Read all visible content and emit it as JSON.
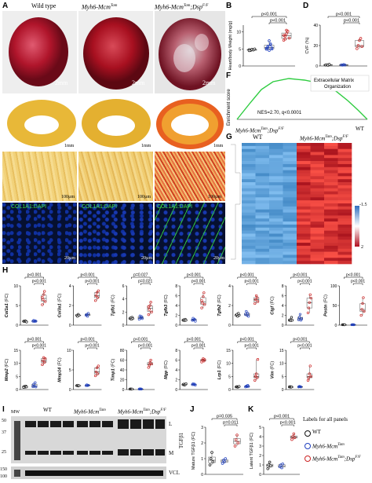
{
  "panels": {
    "A": {
      "label": "A",
      "headers": [
        "Wild type",
        "Myh6-Mcm",
        "Myh6-Mcm"
      ],
      "header_sup": [
        "",
        "Tam",
        "Tam"
      ],
      "header_tail": [
        "",
        "",
        ";Dsp"
      ],
      "header_tail_sup": [
        "",
        "",
        "F/F"
      ],
      "scalebars": [
        "2mm",
        "2mm",
        "2mm"
      ]
    },
    "B": {
      "label": "B"
    },
    "C": {
      "label": "C",
      "scalebars": [
        "1mm",
        "1mm",
        "1mm",
        "100µm",
        "100µm",
        "100µm"
      ]
    },
    "D": {
      "label": "D"
    },
    "E": {
      "label": "E",
      "stains": [
        "COL1A1:DAPI",
        "COL1A1:DAPI",
        "COL1A1:DAPI"
      ],
      "scalebars": [
        "20µm",
        "20µm",
        "20µm"
      ]
    },
    "F": {
      "label": "F",
      "ylabel": "Enrichment score",
      "box_text": "Extracellular Matrix Organization",
      "nes": "NES=2.70, q<0.0001",
      "xleft": "Myh6-Mcm",
      "xleft_sup": "Tam",
      "xleft_tail": ";Dsp",
      "xleft_tail_sup": "F/F",
      "xright": "WT"
    },
    "G": {
      "label": "G",
      "col_left": "WT",
      "col_right": "Myh6-Mcm",
      "col_right_sup": "Tam",
      "col_right_tail": ";Dsp",
      "col_right_tail_sup": "F/F",
      "scale_top": "-1.5",
      "scale_bottom": "2"
    },
    "H": {
      "label": "H"
    },
    "I": {
      "label": "I",
      "mw": "MW",
      "lanes": [
        "WT",
        "Myh6-Mcm",
        "Myh6-Mcm"
      ],
      "lane_sup": [
        "",
        "Tam",
        "Tam"
      ],
      "lane_tail": [
        "",
        "",
        ";Dsp"
      ],
      "lane_tail_sup": [
        "",
        "",
        "F/F"
      ],
      "markers": [
        "50",
        "37",
        "25",
        "150",
        "100"
      ],
      "band_L": "L",
      "band_M": "M",
      "protein": "TGFβ1",
      "loading": "VCL"
    },
    "J": {
      "label": "J"
    },
    "K": {
      "label": "K"
    }
  },
  "legend": {
    "title": "Labels for all panels",
    "items": [
      {
        "name": "WT",
        "sup": "",
        "tail": "",
        "tail_sup": "",
        "color": "#111111"
      },
      {
        "name": "Myh6-Mcm",
        "sup": "Tam",
        "tail": "",
        "tail_sup": "",
        "color": "#1f3fbf"
      },
      {
        "name": "Myh6-Mcm",
        "sup": "Tam",
        "tail": ";Dsp",
        "tail_sup": "F/F",
        "color": "#cc2222"
      }
    ]
  },
  "chart_data": [
    {
      "panel": "B",
      "type": "scatter",
      "ylabel": "Heart/body Weight (mg/g)",
      "ylim": [
        0,
        12
      ],
      "yticks": [
        0,
        5,
        10
      ],
      "groups": [
        {
          "color": "#111111",
          "values": [
            4.8,
            4.6,
            4.9,
            4.7,
            5.0,
            4.5
          ]
        },
        {
          "color": "#1f3fbf",
          "values": [
            5.2,
            5.8,
            4.6,
            6.5,
            5.0,
            4.9,
            5.5,
            7.4,
            6.2,
            5.3
          ]
        },
        {
          "color": "#cc2222",
          "values": [
            7.6,
            8.8,
            9.5,
            10.2,
            8.2,
            9.0,
            7.9,
            10.5
          ]
        }
      ],
      "pvalues": [
        {
          "text": "p<0.001",
          "from": 0,
          "to": 2
        },
        {
          "text": "p<0.001",
          "from": 1,
          "to": 2
        }
      ]
    },
    {
      "panel": "D",
      "type": "scatter",
      "ylabel": "CVF (%)",
      "ylim": [
        0,
        40
      ],
      "yticks": [
        0,
        20,
        40
      ],
      "groups": [
        {
          "color": "#111111",
          "values": [
            1.0,
            1.2,
            0.8,
            1.5
          ]
        },
        {
          "color": "#1f3fbf",
          "values": [
            1.1,
            0.9,
            1.3,
            1.0
          ]
        },
        {
          "color": "#cc2222",
          "values": [
            17,
            20,
            25,
            27,
            19
          ]
        }
      ],
      "pvalues": [
        {
          "text": "p<0.001",
          "from": 0,
          "to": 2
        },
        {
          "text": "p<0.001",
          "from": 1,
          "to": 2
        }
      ]
    },
    {
      "panel": "H",
      "type": "scatter",
      "gene": "Col1a1",
      "ylabel": "(FC)",
      "ylim": [
        0,
        10
      ],
      "yticks": [
        0,
        5,
        10
      ],
      "groups": [
        {
          "color": "#111111",
          "values": [
            1,
            0.9,
            1.1,
            1.0,
            0.8
          ]
        },
        {
          "color": "#1f3fbf",
          "values": [
            1,
            1.2,
            0.9,
            1.1,
            1.0
          ]
        },
        {
          "color": "#cc2222",
          "values": [
            5.2,
            6.5,
            7.8,
            8.6,
            6.0,
            7.1
          ]
        }
      ],
      "pvalues": [
        {
          "text": "p<0.001",
          "from": 0,
          "to": 2
        },
        {
          "text": "p<0.001",
          "from": 1,
          "to": 2
        }
      ]
    },
    {
      "panel": "H",
      "type": "scatter",
      "gene": "Col3a1",
      "ylabel": "(FC)",
      "ylim": [
        0,
        4
      ],
      "yticks": [
        0,
        2,
        4
      ],
      "groups": [
        {
          "color": "#111111",
          "values": [
            1,
            0.9,
            1.1,
            1.0
          ]
        },
        {
          "color": "#1f3fbf",
          "values": [
            1.0,
            1.1,
            0.9,
            1.2
          ]
        },
        {
          "color": "#cc2222",
          "values": [
            2.5,
            3.0,
            3.3,
            2.8,
            3.5
          ]
        }
      ],
      "pvalues": [
        {
          "text": "p<0.001",
          "from": 0,
          "to": 2
        },
        {
          "text": "p<0.001",
          "from": 1,
          "to": 2
        }
      ]
    },
    {
      "panel": "H",
      "type": "scatter",
      "gene": "Tgfb1",
      "ylabel": "(FC)",
      "ylim": [
        0,
        6
      ],
      "yticks": [
        0,
        2,
        4,
        6
      ],
      "groups": [
        {
          "color": "#111111",
          "values": [
            1,
            1.1,
            0.9,
            1.2,
            1.0
          ]
        },
        {
          "color": "#1f3fbf",
          "values": [
            0.9,
            1.4,
            1.1,
            1.3,
            1.0
          ]
        },
        {
          "color": "#cc2222",
          "values": [
            1.6,
            2.4,
            3.0,
            3.5,
            2.0,
            2.8
          ]
        }
      ],
      "pvalues": [
        {
          "text": "p=0.027",
          "from": 0,
          "to": 2
        },
        {
          "text": "p=0.021",
          "from": 1,
          "to": 2
        }
      ]
    },
    {
      "panel": "H",
      "type": "scatter",
      "gene": "Tgfb3",
      "ylabel": "(FC)",
      "ylim": [
        0,
        8
      ],
      "yticks": [
        0,
        2,
        4,
        6,
        8
      ],
      "groups": [
        {
          "color": "#111111",
          "values": [
            1,
            1.1,
            0.9,
            1.2,
            1.0
          ]
        },
        {
          "color": "#1f3fbf",
          "values": [
            1.0,
            1.4,
            1.1,
            1.2,
            0.8,
            1.0
          ]
        },
        {
          "color": "#cc2222",
          "values": [
            3.5,
            4.5,
            5.8,
            6.6,
            4.2,
            5.0
          ]
        }
      ],
      "pvalues": [
        {
          "text": "p<0.001",
          "from": 0,
          "to": 2
        },
        {
          "text": "p<0.001",
          "from": 1,
          "to": 2
        }
      ]
    },
    {
      "panel": "H",
      "type": "scatter",
      "gene": "Tgfb2",
      "ylabel": "(FC)",
      "ylim": [
        0,
        4
      ],
      "yticks": [
        0,
        2,
        4
      ],
      "groups": [
        {
          "color": "#111111",
          "values": [
            1,
            1.1,
            0.9,
            1.2,
            1.0
          ]
        },
        {
          "color": "#1f3fbf",
          "values": [
            1.1,
            1.4,
            1.0,
            1.2,
            0.9
          ]
        },
        {
          "color": "#cc2222",
          "values": [
            2.2,
            2.6,
            3.0,
            2.8,
            2.4
          ]
        }
      ],
      "pvalues": [
        {
          "text": "p<0.001",
          "from": 0,
          "to": 2
        },
        {
          "text": "p<0.001",
          "from": 1,
          "to": 2
        }
      ]
    },
    {
      "panel": "H",
      "type": "scatter",
      "gene": "Ctgf",
      "ylabel": "(FC)",
      "ylim": [
        0,
        8
      ],
      "yticks": [
        0,
        2,
        4,
        6,
        8
      ],
      "groups": [
        {
          "color": "#111111",
          "values": [
            1,
            1.1,
            0.9,
            1.6,
            1.0
          ]
        },
        {
          "color": "#1f3fbf",
          "values": [
            1.1,
            1.6,
            2.2,
            1.0,
            1.3
          ]
        },
        {
          "color": "#cc2222",
          "values": [
            2.5,
            3.5,
            4.6,
            6.2,
            5.5
          ]
        }
      ],
      "pvalues": [
        {
          "text": "p<0.001",
          "from": 0,
          "to": 2
        },
        {
          "text": "p<0.001",
          "from": 1,
          "to": 2
        }
      ]
    },
    {
      "panel": "H",
      "type": "scatter",
      "gene": "Postn",
      "ylabel": "(FC)",
      "ylim": [
        0,
        100
      ],
      "yticks": [
        0,
        50,
        100
      ],
      "groups": [
        {
          "color": "#111111",
          "values": [
            1,
            1.2,
            0.9,
            1.1
          ]
        },
        {
          "color": "#1f3fbf",
          "values": [
            1,
            1.3,
            1.1,
            1.0
          ]
        },
        {
          "color": "#cc2222",
          "values": [
            25,
            40,
            55,
            70,
            35
          ]
        }
      ],
      "pvalues": [
        {
          "text": "p<0.001",
          "from": 0,
          "to": 2
        },
        {
          "text": "p<0.001",
          "from": 1,
          "to": 2
        }
      ]
    },
    {
      "panel": "H",
      "type": "scatter",
      "gene": "Mmp2",
      "ylabel": "(FC)",
      "ylim": [
        0,
        15
      ],
      "yticks": [
        0,
        5,
        10,
        15
      ],
      "groups": [
        {
          "color": "#111111",
          "values": [
            1,
            1.2,
            0.9,
            1.3,
            1.0,
            0.8
          ]
        },
        {
          "color": "#1f3fbf",
          "values": [
            1.1,
            2.0,
            1.3,
            2.6,
            1.0
          ]
        },
        {
          "color": "#cc2222",
          "values": [
            9.5,
            11,
            12.2,
            10.4,
            11.8
          ]
        }
      ],
      "pvalues": [
        {
          "text": "p<0.001",
          "from": 0,
          "to": 2
        },
        {
          "text": "p<0.001",
          "from": 1,
          "to": 2
        }
      ]
    },
    {
      "panel": "H",
      "type": "scatter",
      "gene": "Mmp14",
      "ylabel": "(FC)",
      "ylim": [
        0,
        10
      ],
      "yticks": [
        0,
        5,
        10
      ],
      "groups": [
        {
          "color": "#111111",
          "values": [
            1,
            1.1,
            0.9,
            1.0
          ]
        },
        {
          "color": "#1f3fbf",
          "values": [
            1,
            1.2,
            1.0,
            1.1
          ]
        },
        {
          "color": "#cc2222",
          "values": [
            3.5,
            4.5,
            5.5,
            4.0,
            6.0
          ]
        }
      ],
      "pvalues": [
        {
          "text": "p<0.001",
          "from": 0,
          "to": 2
        },
        {
          "text": "p<0.001",
          "from": 1,
          "to": 2
        }
      ]
    },
    {
      "panel": "H",
      "type": "scatter",
      "gene": "Timp1",
      "ylabel": "(FC)",
      "ylim": [
        0,
        80
      ],
      "yticks": [
        0,
        20,
        40,
        60,
        80
      ],
      "groups": [
        {
          "color": "#111111",
          "values": [
            1,
            1.1,
            0.9,
            1.0
          ]
        },
        {
          "color": "#1f3fbf",
          "values": [
            1,
            1.3,
            1.1,
            1.0
          ]
        },
        {
          "color": "#cc2222",
          "values": [
            45,
            50,
            55,
            60,
            52
          ]
        }
      ],
      "pvalues": [
        {
          "text": "p<0.001",
          "from": 0,
          "to": 2
        },
        {
          "text": "p<0.001",
          "from": 1,
          "to": 2
        }
      ]
    },
    {
      "panel": "H",
      "type": "scatter",
      "gene": "Mgp",
      "ylabel": "(FC)",
      "ylim": [
        0,
        8
      ],
      "yticks": [
        0,
        2,
        4,
        6,
        8
      ],
      "groups": [
        {
          "color": "#111111",
          "values": [
            1,
            1.1,
            0.9,
            1.0,
            1.2
          ]
        },
        {
          "color": "#1f3fbf",
          "values": [
            1,
            1.2,
            1.0,
            1.1,
            0.9
          ]
        },
        {
          "color": "#cc2222",
          "values": [
            5.6,
            6.0,
            6.3,
            5.8,
            6.1
          ]
        }
      ],
      "pvalues": [
        {
          "text": "p<0.001",
          "from": 0,
          "to": 2
        },
        {
          "text": "p<0.001",
          "from": 1,
          "to": 2
        }
      ]
    },
    {
      "panel": "H",
      "type": "scatter",
      "gene": "Lrp1",
      "ylabel": "(FC)",
      "ylim": [
        0,
        15
      ],
      "yticks": [
        0,
        5,
        10,
        15
      ],
      "groups": [
        {
          "color": "#111111",
          "values": [
            1,
            1.1,
            0.9,
            1.0,
            1.2
          ]
        },
        {
          "color": "#1f3fbf",
          "values": [
            1,
            1.3,
            1.1,
            1.6,
            1.2
          ]
        },
        {
          "color": "#cc2222",
          "values": [
            3.5,
            5.0,
            6.0,
            4.5,
            11.5
          ]
        }
      ],
      "pvalues": [
        {
          "text": "p<0.001",
          "from": 0,
          "to": 2
        },
        {
          "text": "p<0.001",
          "from": 1,
          "to": 2
        }
      ]
    },
    {
      "panel": "H",
      "type": "scatter",
      "gene": "Vim",
      "ylabel": "(FC)",
      "ylim": [
        0,
        15
      ],
      "yticks": [
        0,
        5,
        10,
        15
      ],
      "groups": [
        {
          "color": "#111111",
          "values": [
            1,
            1.1,
            0.9,
            1.0
          ]
        },
        {
          "color": "#1f3fbf",
          "values": [
            1,
            1.2,
            1.1,
            1.0
          ]
        },
        {
          "color": "#cc2222",
          "values": [
            3.5,
            4.5,
            6.0,
            9.0,
            5.0
          ]
        }
      ],
      "pvalues": [
        {
          "text": "p<0.001",
          "from": 0,
          "to": 2
        },
        {
          "text": "p<0.001",
          "from": 1,
          "to": 2
        }
      ]
    },
    {
      "panel": "J",
      "type": "scatter",
      "ylabel": "Mature TGFβ1 (FC)",
      "ylim": [
        0,
        3
      ],
      "yticks": [
        0,
        1,
        2,
        3
      ],
      "groups": [
        {
          "color": "#111111",
          "values": [
            0.6,
            1.0,
            1.4,
            0.8
          ]
        },
        {
          "color": "#1f3fbf",
          "values": [
            0.7,
            0.9,
            0.8,
            1.0
          ]
        },
        {
          "color": "#cc2222",
          "values": [
            1.8,
            2.2,
            2.5,
            2.0
          ]
        }
      ],
      "pvalues": [
        {
          "text": "p=0.035",
          "from": 0,
          "to": 2
        },
        {
          "text": "p=0.011",
          "from": 1,
          "to": 2
        }
      ]
    },
    {
      "panel": "K",
      "type": "scatter",
      "ylabel": "Latent TGFβ1 (FC)",
      "ylim": [
        0,
        5
      ],
      "yticks": [
        0,
        1,
        2,
        3,
        4,
        5
      ],
      "groups": [
        {
          "color": "#111111",
          "values": [
            0.6,
            1.0,
            1.3,
            0.9
          ]
        },
        {
          "color": "#1f3fbf",
          "values": [
            0.8,
            1.0,
            0.7,
            1.1
          ]
        },
        {
          "color": "#cc2222",
          "values": [
            3.7,
            4.0,
            4.3,
            3.9
          ]
        }
      ],
      "pvalues": [
        {
          "text": "p<0.001",
          "from": 0,
          "to": 2
        },
        {
          "text": "p<0.001",
          "from": 1,
          "to": 2
        }
      ]
    }
  ]
}
